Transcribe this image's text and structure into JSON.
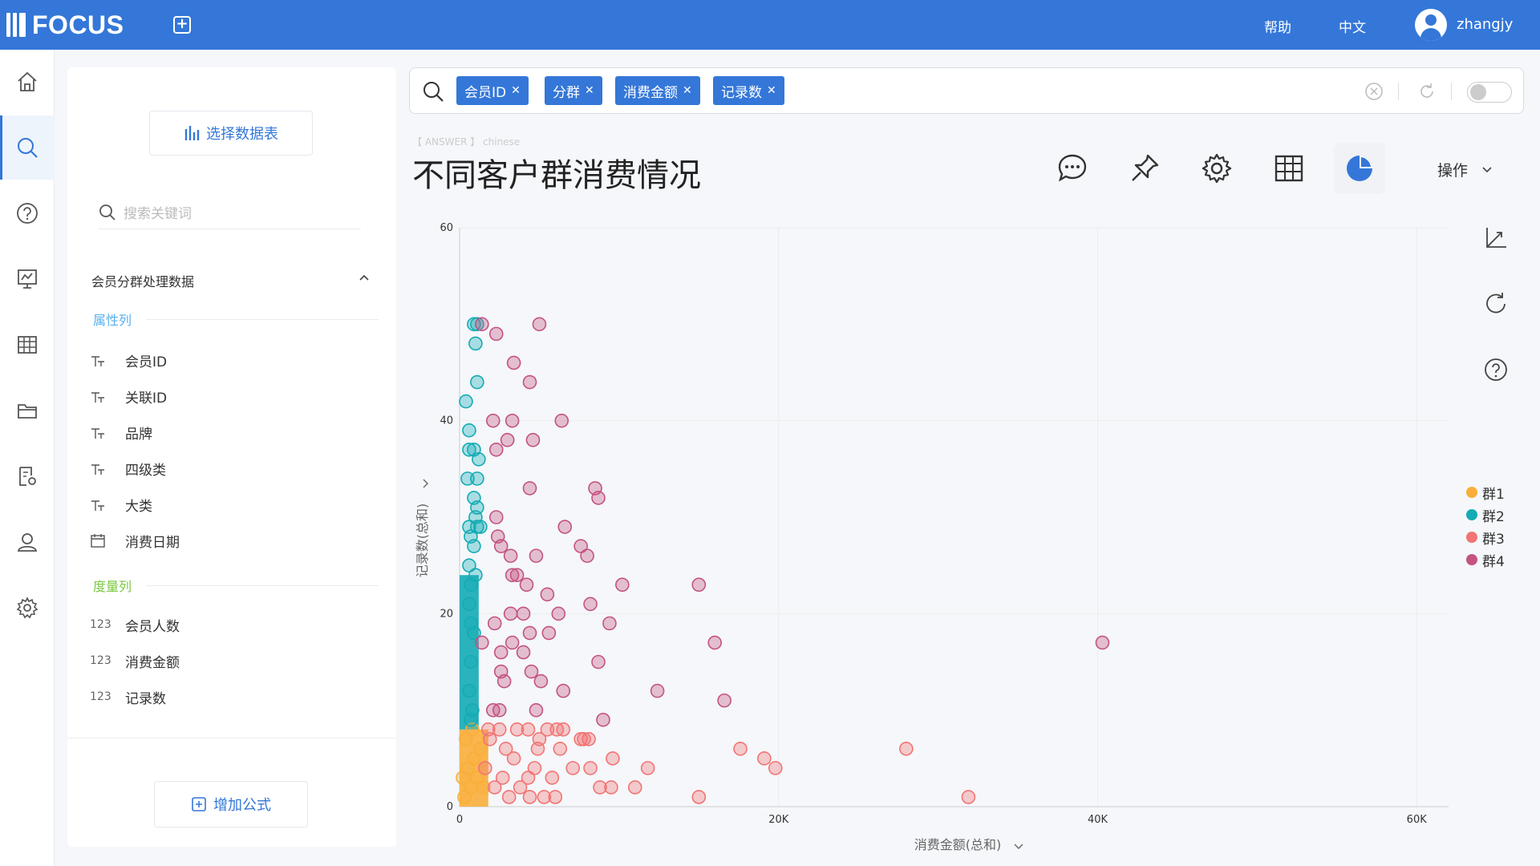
{
  "topbar": {
    "brand": "FOCUS",
    "help": "帮助",
    "language": "中文",
    "username": "zhangjy"
  },
  "panel": {
    "select_table": "选择数据表",
    "search_placeholder": "搜索关键词",
    "table_name": "会员分群处理数据",
    "attr_section": "属性列",
    "measure_section": "度量列",
    "attributes": [
      {
        "label": "会员ID",
        "icon": "text-type-icon"
      },
      {
        "label": "关联ID",
        "icon": "text-type-icon"
      },
      {
        "label": "品牌",
        "icon": "text-type-icon"
      },
      {
        "label": "四级类",
        "icon": "text-type-icon"
      },
      {
        "label": "大类",
        "icon": "text-type-icon"
      },
      {
        "label": "消费日期",
        "icon": "calendar-icon"
      }
    ],
    "measures": [
      {
        "label": "会员人数",
        "type": "123"
      },
      {
        "label": "消费金额",
        "type": "123"
      },
      {
        "label": "记录数",
        "type": "123"
      }
    ],
    "add_formula": "增加公式"
  },
  "search": {
    "tokens": [
      "会员ID",
      "分群",
      "消费金额",
      "记录数"
    ]
  },
  "answer": {
    "label": "【 ANSWER 】 chinese",
    "title": "不同客户群消费情况",
    "ops": "操作"
  },
  "colors": {
    "brand": "#3477d8",
    "group1": "#f9ae3b",
    "group2": "#14abb5",
    "group3": "#f27474",
    "group4": "#c45382"
  },
  "chart_data": {
    "type": "scatter",
    "title": "",
    "xlabel": "消费金额(总和)",
    "ylabel": "记录数(总和)",
    "xlim": [
      0,
      62000
    ],
    "ylim": [
      0,
      60
    ],
    "xticks": [
      "0",
      "20K",
      "40K",
      "60K"
    ],
    "yticks": [
      "0",
      "20",
      "40",
      "60"
    ],
    "grid": true,
    "legend_position": "right",
    "bands": [
      {
        "series": "群1",
        "x_range": [
          0,
          1800
        ],
        "y_range": [
          0,
          8
        ]
      },
      {
        "series": "群2",
        "x_range": [
          0,
          1200
        ],
        "y_range": [
          8,
          24
        ]
      }
    ],
    "series": [
      {
        "name": "群1",
        "points": [
          [
            300,
            1
          ],
          [
            700,
            2
          ],
          [
            1100,
            3
          ],
          [
            500,
            4
          ],
          [
            900,
            5
          ],
          [
            1300,
            6
          ],
          [
            400,
            7
          ],
          [
            800,
            8
          ],
          [
            1500,
            2
          ],
          [
            200,
            3
          ]
        ]
      },
      {
        "name": "群2",
        "points": [
          [
            900,
            50
          ],
          [
            1100,
            50
          ],
          [
            1000,
            48
          ],
          [
            1100,
            44
          ],
          [
            400,
            42
          ],
          [
            600,
            39
          ],
          [
            600,
            37
          ],
          [
            900,
            37
          ],
          [
            1200,
            36
          ],
          [
            500,
            34
          ],
          [
            1100,
            34
          ],
          [
            900,
            32
          ],
          [
            1100,
            31
          ],
          [
            1000,
            30
          ],
          [
            600,
            29
          ],
          [
            1100,
            29
          ],
          [
            1300,
            29
          ],
          [
            700,
            28
          ],
          [
            900,
            27
          ],
          [
            600,
            25
          ],
          [
            1000,
            24
          ],
          [
            700,
            23
          ],
          [
            600,
            21
          ],
          [
            700,
            19
          ],
          [
            900,
            18
          ],
          [
            700,
            15
          ],
          [
            600,
            12
          ],
          [
            800,
            10
          ],
          [
            700,
            9
          ]
        ]
      },
      {
        "name": "群3",
        "points": [
          [
            1800,
            8
          ],
          [
            2500,
            8
          ],
          [
            3600,
            8
          ],
          [
            4300,
            8
          ],
          [
            5500,
            8
          ],
          [
            6100,
            8
          ],
          [
            6500,
            8
          ],
          [
            7600,
            7
          ],
          [
            7800,
            7
          ],
          [
            8100,
            7
          ],
          [
            9600,
            5
          ],
          [
            11000,
            2
          ],
          [
            11800,
            4
          ],
          [
            15000,
            1
          ],
          [
            17600,
            6
          ],
          [
            19100,
            5
          ],
          [
            19800,
            4
          ],
          [
            28000,
            6
          ],
          [
            31900,
            1
          ],
          [
            3100,
            1
          ],
          [
            4400,
            1
          ],
          [
            5300,
            1
          ],
          [
            6000,
            1
          ],
          [
            8800,
            2
          ],
          [
            9500,
            2
          ],
          [
            2700,
            3
          ],
          [
            4300,
            3
          ],
          [
            5800,
            3
          ],
          [
            7100,
            4
          ],
          [
            8200,
            4
          ],
          [
            3400,
            5
          ],
          [
            4900,
            6
          ],
          [
            6300,
            6
          ],
          [
            5000,
            7
          ],
          [
            2200,
            2
          ],
          [
            3800,
            2
          ],
          [
            1600,
            4
          ],
          [
            2900,
            6
          ],
          [
            4700,
            4
          ],
          [
            1900,
            7
          ]
        ]
      },
      {
        "name": "群4",
        "points": [
          [
            1400,
            50
          ],
          [
            2300,
            49
          ],
          [
            5000,
            50
          ],
          [
            3400,
            46
          ],
          [
            4400,
            44
          ],
          [
            2100,
            40
          ],
          [
            3300,
            40
          ],
          [
            6400,
            40
          ],
          [
            2300,
            37
          ],
          [
            3000,
            38
          ],
          [
            4600,
            38
          ],
          [
            4400,
            33
          ],
          [
            8500,
            33
          ],
          [
            8700,
            32
          ],
          [
            2300,
            30
          ],
          [
            6600,
            29
          ],
          [
            2400,
            28
          ],
          [
            7600,
            27
          ],
          [
            2600,
            27
          ],
          [
            4800,
            26
          ],
          [
            3200,
            26
          ],
          [
            8000,
            26
          ],
          [
            3300,
            24
          ],
          [
            3600,
            24
          ],
          [
            4200,
            23
          ],
          [
            5500,
            22
          ],
          [
            8200,
            21
          ],
          [
            10200,
            23
          ],
          [
            15000,
            23
          ],
          [
            3200,
            20
          ],
          [
            4000,
            20
          ],
          [
            6200,
            20
          ],
          [
            9400,
            19
          ],
          [
            2200,
            19
          ],
          [
            4400,
            18
          ],
          [
            5600,
            18
          ],
          [
            1400,
            17
          ],
          [
            3300,
            17
          ],
          [
            2600,
            16
          ],
          [
            4000,
            16
          ],
          [
            16000,
            17
          ],
          [
            40300,
            17
          ],
          [
            2600,
            14
          ],
          [
            4500,
            14
          ],
          [
            8700,
            15
          ],
          [
            2800,
            13
          ],
          [
            5100,
            13
          ],
          [
            6500,
            12
          ],
          [
            12400,
            12
          ],
          [
            16600,
            11
          ],
          [
            2500,
            10
          ],
          [
            4800,
            10
          ],
          [
            2100,
            10
          ],
          [
            9000,
            9
          ]
        ]
      }
    ]
  }
}
